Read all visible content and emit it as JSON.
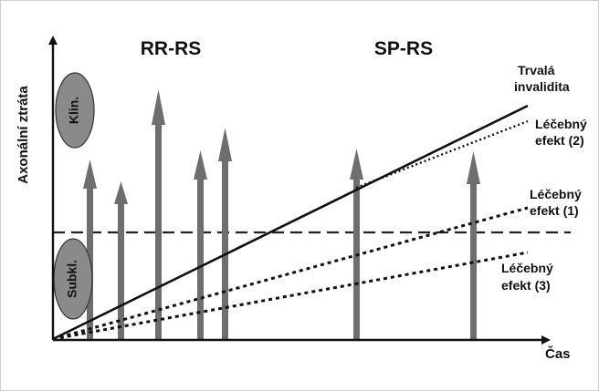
{
  "phases": {
    "left": "RR-RS",
    "right": "SP-RS"
  },
  "axes": {
    "y": "Axonální ztráta",
    "x": "Čas"
  },
  "zones": {
    "upper": "Klin.",
    "lower": "Subkl."
  },
  "lines": {
    "permanent_line1": "Trvalá",
    "permanent_line2": "invalidita",
    "effect2_line1": "Léčebný",
    "effect2_line2": "efekt (2)",
    "effect1_line1": "Léčebný",
    "effect1_line2": "efekt  (1)",
    "effect3_line1": "Léčebný",
    "effect3_line2": "efekt (3)"
  },
  "colors": {
    "arrow": "#6e6e6e",
    "ellipse": "#8a8a8a",
    "line": "#111111"
  }
}
